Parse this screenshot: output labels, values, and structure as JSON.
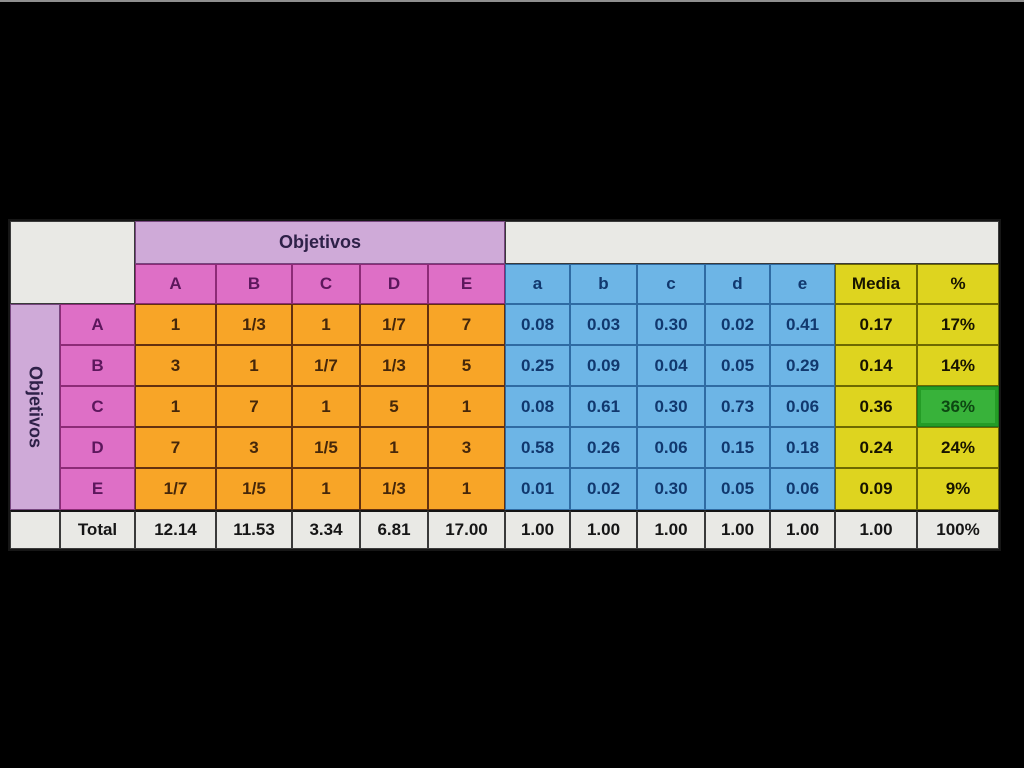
{
  "table": {
    "col_group_header": "Objetivos",
    "row_group_header": "Objetivos",
    "pair_cols": [
      "A",
      "B",
      "C",
      "D",
      "E"
    ],
    "norm_cols": [
      "a",
      "b",
      "c",
      "d",
      "e"
    ],
    "media_header": "Media",
    "pct_header": "%",
    "rows": [
      {
        "label": "A",
        "pair": [
          "1",
          "1/3",
          "1",
          "1/7",
          "7"
        ],
        "norm": [
          "0.08",
          "0.03",
          "0.30",
          "0.02",
          "0.41"
        ],
        "media": "0.17",
        "pct": "17%",
        "highlight": false
      },
      {
        "label": "B",
        "pair": [
          "3",
          "1",
          "1/7",
          "1/3",
          "5"
        ],
        "norm": [
          "0.25",
          "0.09",
          "0.04",
          "0.05",
          "0.29"
        ],
        "media": "0.14",
        "pct": "14%",
        "highlight": false
      },
      {
        "label": "C",
        "pair": [
          "1",
          "7",
          "1",
          "5",
          "1"
        ],
        "norm": [
          "0.08",
          "0.61",
          "0.30",
          "0.73",
          "0.06"
        ],
        "media": "0.36",
        "pct": "36%",
        "highlight": true
      },
      {
        "label": "D",
        "pair": [
          "7",
          "3",
          "1/5",
          "1",
          "3"
        ],
        "norm": [
          "0.58",
          "0.26",
          "0.06",
          "0.15",
          "0.18"
        ],
        "media": "0.24",
        "pct": "24%",
        "highlight": false
      },
      {
        "label": "E",
        "pair": [
          "1/7",
          "1/5",
          "1",
          "1/3",
          "1"
        ],
        "norm": [
          "0.01",
          "0.02",
          "0.30",
          "0.05",
          "0.06"
        ],
        "media": "0.09",
        "pct": "9%",
        "highlight": false
      }
    ],
    "total": {
      "label": "Total",
      "pair": [
        "12.14",
        "11.53",
        "3.34",
        "6.81",
        "17.00"
      ],
      "norm": [
        "1.00",
        "1.00",
        "1.00",
        "1.00",
        "1.00"
      ],
      "media": "1.00",
      "pct": "100%"
    }
  },
  "colors": {
    "background": "#000000",
    "lavender": "#cfaad8",
    "pink": "#de6fc6",
    "orange": "#f8a527",
    "blue": "#6db5e6",
    "yellow": "#ded41f",
    "green": "#38b23a",
    "white_cell": "#e9e9e5"
  }
}
